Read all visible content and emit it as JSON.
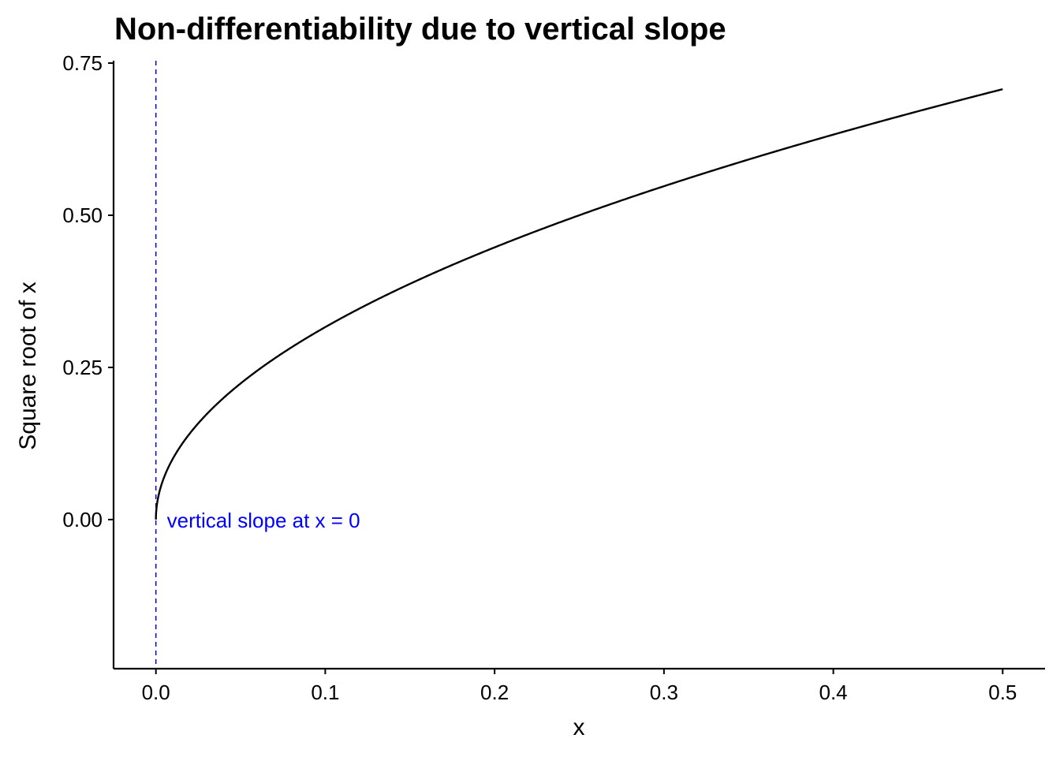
{
  "chart_data": {
    "type": "line",
    "title": "Non-differentiability due to vertical slope",
    "xlabel": "x",
    "ylabel": "Square root of x",
    "xlim": [
      -0.025,
      0.525
    ],
    "ylim": [
      -0.245,
      0.75
    ],
    "xticks": [
      0.0,
      0.1,
      0.2,
      0.3,
      0.4,
      0.5
    ],
    "xtick_labels": [
      "0.0",
      "0.1",
      "0.2",
      "0.3",
      "0.4",
      "0.5"
    ],
    "yticks": [
      0.0,
      0.25,
      0.5,
      0.75
    ],
    "ytick_labels": [
      "0.00",
      "0.25",
      "0.50",
      "0.75"
    ],
    "grid": false,
    "series": [
      {
        "name": "sqrt(x)",
        "function": "sqrt",
        "x_range": [
          0,
          0.5
        ],
        "color": "#000000"
      }
    ],
    "vline": {
      "x": 0,
      "color": "#0000FF",
      "style": "dashed"
    },
    "annotation": {
      "text": "vertical slope at x = 0",
      "x": 0,
      "y": 0,
      "color": "#0000FF"
    }
  }
}
